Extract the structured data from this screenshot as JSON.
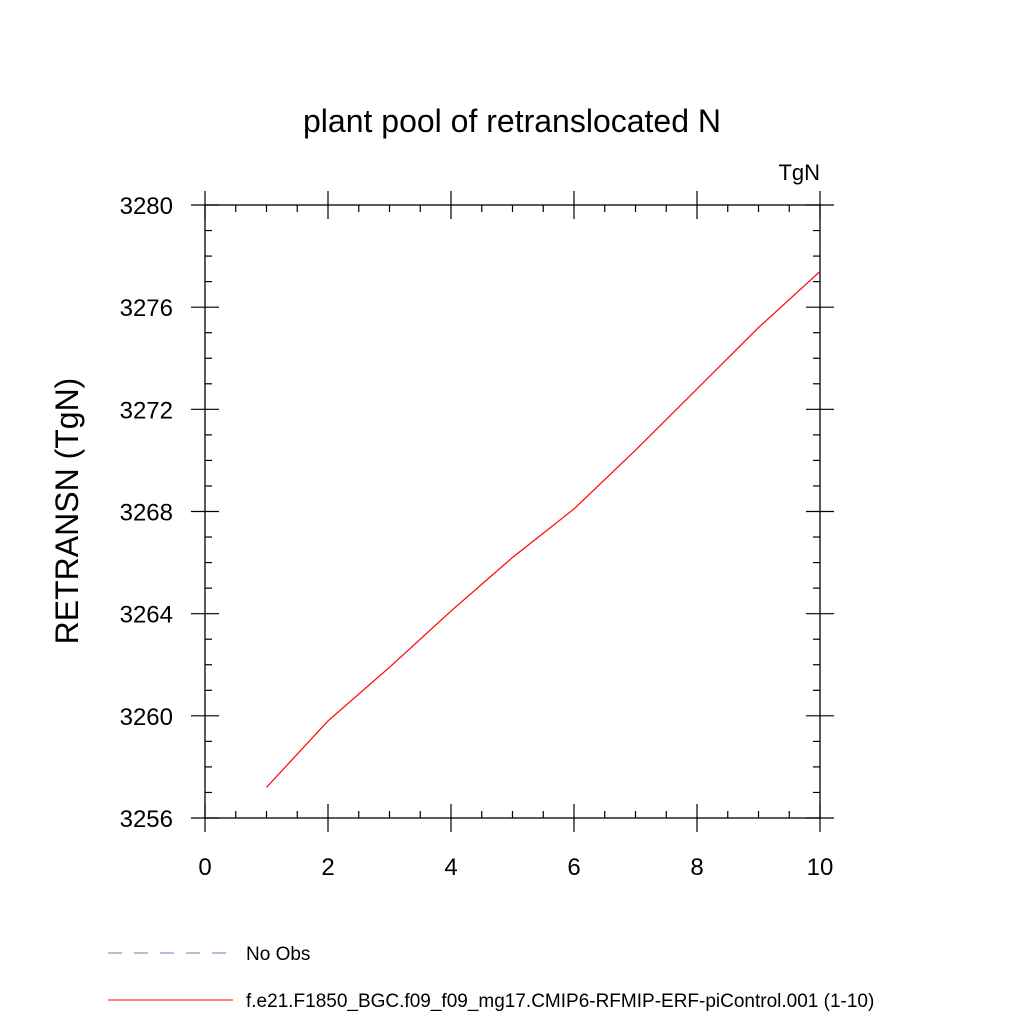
{
  "chart_data": {
    "type": "line",
    "title": "plant pool of retranslocated N",
    "units_label": "TgN",
    "ylabel": "RETRANSN  (TgN)",
    "xlabel": "",
    "xlim": [
      0,
      10
    ],
    "ylim": [
      3256,
      3280
    ],
    "x_ticks": [
      "0",
      "2",
      "4",
      "6",
      "8",
      "10"
    ],
    "y_ticks": [
      "3256",
      "3260",
      "3264",
      "3268",
      "3272",
      "3276",
      "3280"
    ],
    "grid": false,
    "legend_position": "bottom-left",
    "series": [
      {
        "name": "f.e21.F1850_BGC.f09_f09_mg17.CMIP6-RFMIP-ERF-piControl.001 (1-10)",
        "color": "#ff0000",
        "style": "solid",
        "x": [
          1,
          2,
          3,
          4,
          5,
          6,
          7,
          8,
          9,
          10
        ],
        "y": [
          3257.2,
          3259.8,
          3261.9,
          3264.1,
          3266.2,
          3268.1,
          3270.4,
          3272.8,
          3275.2,
          3277.4
        ]
      }
    ],
    "legend": [
      {
        "label": "No Obs",
        "color": "#7b6fb0",
        "style": "dashed"
      },
      {
        "label": "f.e21.F1850_BGC.f09_f09_mg17.CMIP6-RFMIP-ERF-piControl.001 (1-10)",
        "color": "#ff0000",
        "style": "solid"
      }
    ]
  }
}
